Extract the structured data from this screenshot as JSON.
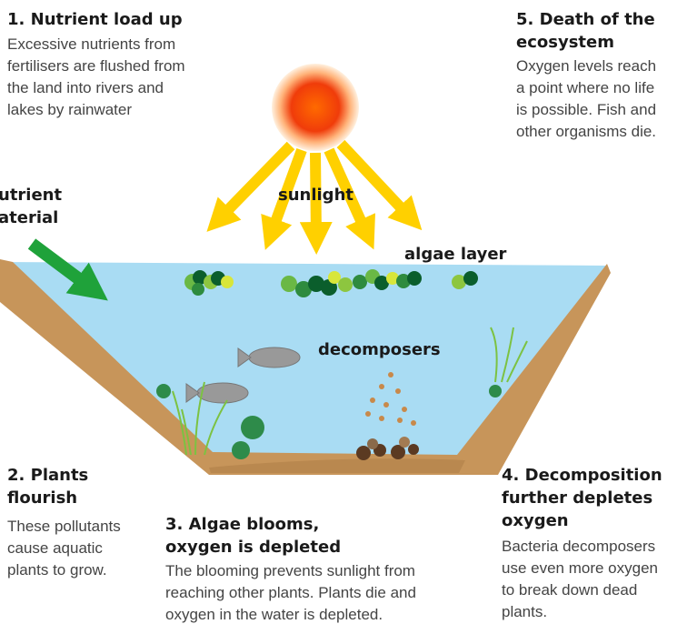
{
  "labels": {
    "nutrient_material_lines": [
      "utrient",
      "aterial"
    ],
    "sunlight": "sunlight",
    "algae_layer": "algae layer",
    "decomposers": "decomposers"
  },
  "steps": [
    {
      "title_lines": [
        "1. Nutrient load up"
      ],
      "body_lines": [
        "Excessive nutrients from",
        "fertilisers are flushed from",
        "the land into rivers and",
        "lakes by rainwater"
      ]
    },
    {
      "title_lines": [
        "2. Plants",
        "flourish"
      ],
      "body_lines": [
        "These pollutants",
        "cause aquatic",
        "plants to grow."
      ]
    },
    {
      "title_lines": [
        "3. Algae blooms,",
        "oxygen is depleted"
      ],
      "body_lines": [
        "The blooming prevents sunlight from",
        "reaching other plants. Plants die and",
        "oxygen in the water is depleted."
      ]
    },
    {
      "title_lines": [
        "4. Decomposition",
        "further depletes",
        "oxygen"
      ],
      "body_lines": [
        "Bacteria decomposers",
        "use even more oxygen",
        "to break down dead",
        "plants."
      ]
    },
    {
      "title_lines": [
        "5. Death of the",
        "ecosystem"
      ],
      "body_lines": [
        "Oxygen levels reach",
        "a point where no life",
        "is possible. Fish and",
        "other organisms die."
      ]
    }
  ]
}
